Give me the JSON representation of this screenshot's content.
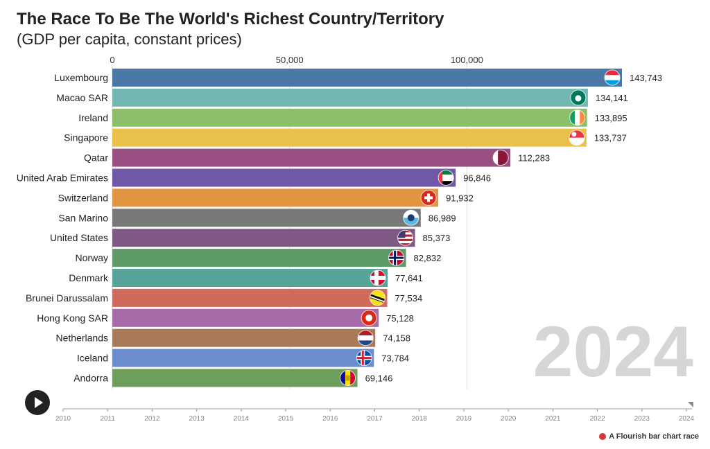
{
  "title": "The Race To Be The World's Richest Country/Territory",
  "subtitle": "(GDP per capita, constant prices)",
  "attribution": "A Flourish bar chart race",
  "current_year_label": "2024",
  "timeline": {
    "years": [
      "2010",
      "2011",
      "2012",
      "2013",
      "2014",
      "2015",
      "2016",
      "2017",
      "2018",
      "2019",
      "2020",
      "2021",
      "2022",
      "2023",
      "2024"
    ],
    "current": "2024"
  },
  "chart_data": {
    "type": "bar",
    "orientation": "horizontal",
    "title": "The Race To Be The World's Richest Country/Territory",
    "subtitle": "(GDP per capita, constant prices)",
    "xlim": [
      0,
      143743
    ],
    "xticks": [
      0,
      50000,
      100000
    ],
    "xtick_labels": [
      "0",
      "50,000",
      "100,000"
    ],
    "grid": true,
    "categories": [
      "Luxembourg",
      "Macao SAR",
      "Ireland",
      "Singapore",
      "Qatar",
      "United Arab Emirates",
      "Switzerland",
      "San Marino",
      "United States",
      "Norway",
      "Denmark",
      "Brunei Darussalam",
      "Hong Kong SAR",
      "Netherlands",
      "Iceland",
      "Andorra"
    ],
    "values": [
      143743,
      134141,
      133895,
      133737,
      112283,
      96846,
      91932,
      86989,
      85373,
      82832,
      77641,
      77534,
      75128,
      74158,
      73784,
      69146
    ],
    "value_labels": [
      "143,743",
      "134,141",
      "133,895",
      "133,737",
      "112,283",
      "96,846",
      "91,932",
      "86,989",
      "85,373",
      "82,832",
      "77,641",
      "77,534",
      "75,128",
      "74,158",
      "73,784",
      "69,146"
    ],
    "colors": [
      "#4c78a8",
      "#72b7b2",
      "#8cbf6a",
      "#e9c04a",
      "#9a4f82",
      "#7158a6",
      "#e39441",
      "#787878",
      "#7e5984",
      "#5e9a68",
      "#56a39a",
      "#d06a5c",
      "#a66ba8",
      "#a87a5a",
      "#6b8dcd",
      "#6c9e5c"
    ],
    "icons": [
      "flag-luxembourg",
      "flag-macao",
      "flag-ireland",
      "flag-singapore",
      "flag-qatar",
      "flag-uae",
      "flag-switzerland",
      "flag-san-marino",
      "flag-united-states",
      "flag-norway",
      "flag-denmark",
      "flag-brunei",
      "flag-hong-kong",
      "flag-netherlands",
      "flag-iceland",
      "flag-andorra"
    ]
  }
}
